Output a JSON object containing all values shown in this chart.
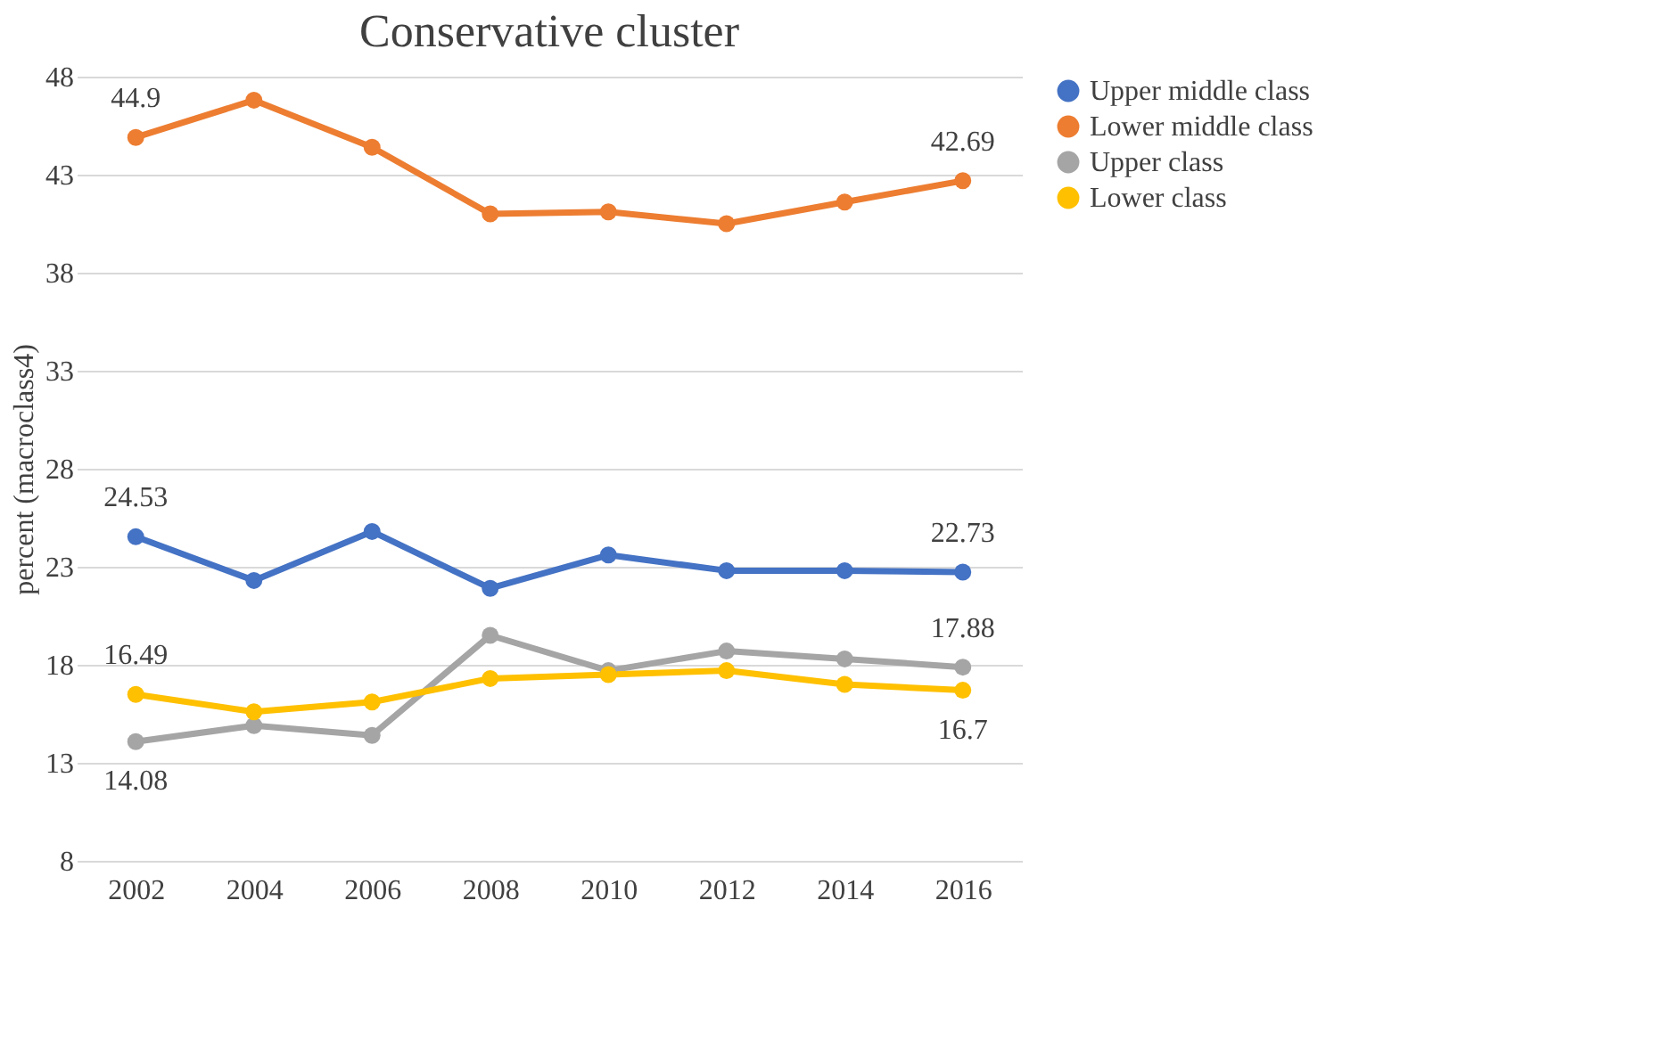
{
  "chart_data": {
    "type": "line",
    "title": "Conservative cluster",
    "ylabel": "percent (macroclass4)",
    "categories": [
      "2002",
      "2004",
      "2006",
      "2008",
      "2010",
      "2012",
      "2014",
      "2016"
    ],
    "series": [
      {
        "name": "Upper middle class",
        "color": "#4472c4",
        "values": [
          24.53,
          22.3,
          24.8,
          21.9,
          23.6,
          22.8,
          22.8,
          22.73
        ],
        "value_labels": [
          "24.53",
          null,
          null,
          null,
          null,
          null,
          null,
          "22.73"
        ]
      },
      {
        "name": "Lower middle class",
        "color": "#ed7d31",
        "values": [
          44.9,
          46.8,
          44.4,
          41.0,
          41.1,
          40.5,
          41.6,
          42.69
        ],
        "value_labels": [
          "44.9",
          null,
          null,
          null,
          null,
          null,
          null,
          "42.69"
        ]
      },
      {
        "name": "Upper class",
        "color": "#a5a5a5",
        "values": [
          14.08,
          14.9,
          14.4,
          19.5,
          17.7,
          18.7,
          18.3,
          17.88
        ],
        "value_labels": [
          "14.08",
          null,
          null,
          null,
          null,
          null,
          null,
          "17.88"
        ]
      },
      {
        "name": "Lower class",
        "color": "#ffc000",
        "values": [
          16.49,
          15.6,
          16.1,
          17.3,
          17.5,
          17.7,
          17.0,
          16.7
        ],
        "value_labels": [
          "16.49",
          null,
          null,
          null,
          null,
          null,
          null,
          "16.7"
        ]
      }
    ],
    "ylim": [
      8,
      48
    ],
    "yticks": [
      8,
      13,
      18,
      23,
      28,
      33,
      38,
      43,
      48
    ],
    "grid": "y",
    "legend": "right",
    "marker": "circle",
    "line_style": "solid"
  }
}
